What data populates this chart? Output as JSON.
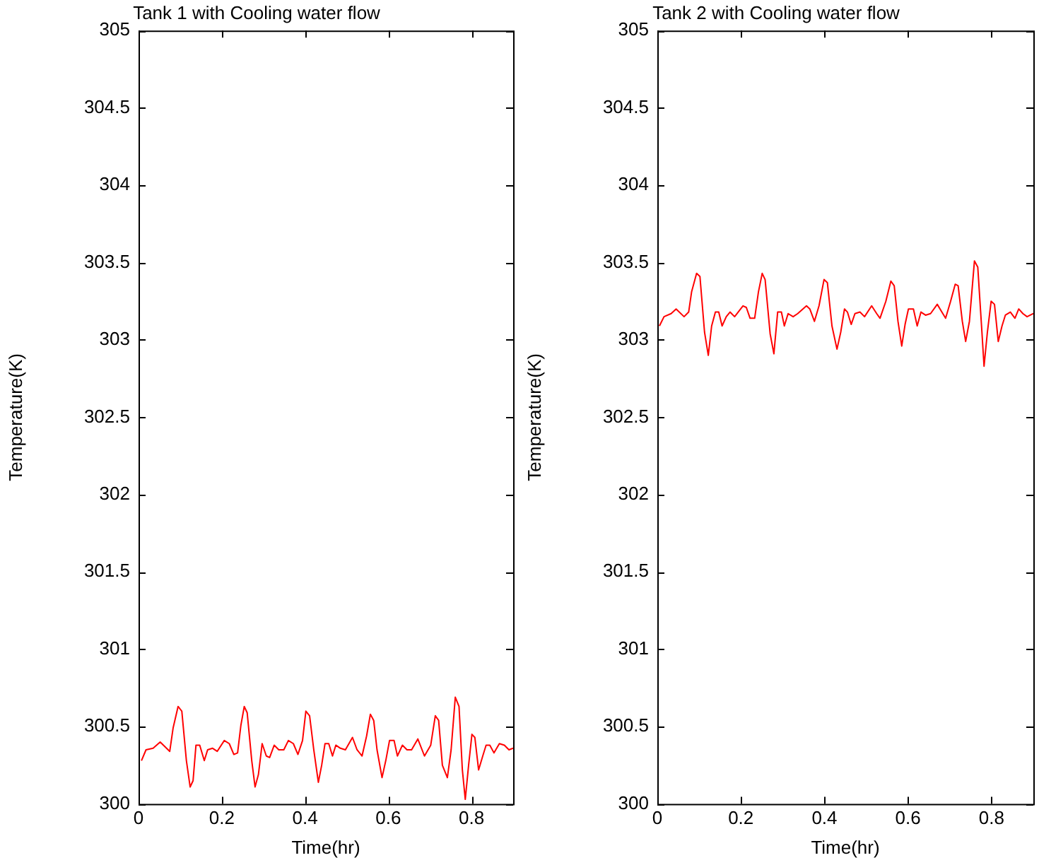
{
  "chart_data": [
    {
      "type": "line",
      "title": "Tank 1 with Cooling water flow",
      "xlabel": "Time(hr)",
      "ylabel": "Temperature(K)",
      "xlim": [
        0,
        0.9
      ],
      "xticks": [
        0,
        0.2,
        0.4,
        0.6,
        0.8
      ],
      "ylim": [
        300,
        305
      ],
      "yticks": [
        300,
        300.5,
        301,
        301.5,
        302,
        302.5,
        303,
        303.5,
        304,
        304.5,
        305
      ],
      "grid": false,
      "legend": false,
      "marker": "none",
      "line_style": "solid",
      "x": [
        0.007,
        0.018,
        0.035,
        0.052,
        0.075,
        0.083,
        0.095,
        0.104,
        0.115,
        0.124,
        0.131,
        0.138,
        0.147,
        0.158,
        0.166,
        0.178,
        0.189,
        0.206,
        0.218,
        0.229,
        0.238,
        0.246,
        0.254,
        0.261,
        0.272,
        0.28,
        0.288,
        0.297,
        0.307,
        0.315,
        0.326,
        0.337,
        0.349,
        0.36,
        0.372,
        0.383,
        0.394,
        0.402,
        0.411,
        0.421,
        0.432,
        0.44,
        0.448,
        0.457,
        0.466,
        0.474,
        0.485,
        0.497,
        0.514,
        0.525,
        0.537,
        0.548,
        0.557,
        0.565,
        0.573,
        0.585,
        0.594,
        0.603,
        0.614,
        0.622,
        0.634,
        0.645,
        0.656,
        0.671,
        0.687,
        0.702,
        0.713,
        0.721,
        0.73,
        0.742,
        0.751,
        0.761,
        0.77,
        0.778,
        0.785,
        0.793,
        0.801,
        0.808,
        0.817,
        0.827,
        0.835,
        0.844,
        0.854,
        0.867,
        0.879,
        0.89,
        0.9
      ],
      "series": [
        {
          "color": "#ff0000",
          "values": [
            300.28,
            300.35,
            300.36,
            300.4,
            300.34,
            300.49,
            300.63,
            300.6,
            300.28,
            300.11,
            300.15,
            300.38,
            300.38,
            300.28,
            300.35,
            300.36,
            300.34,
            300.41,
            300.39,
            300.32,
            300.33,
            300.51,
            300.63,
            300.59,
            300.28,
            300.11,
            300.19,
            300.39,
            300.31,
            300.3,
            300.38,
            300.35,
            300.35,
            300.41,
            300.39,
            300.32,
            300.41,
            300.6,
            300.57,
            300.35,
            300.14,
            300.25,
            300.39,
            300.39,
            300.31,
            300.38,
            300.36,
            300.35,
            300.43,
            300.35,
            300.31,
            300.44,
            300.58,
            300.54,
            300.35,
            300.17,
            300.28,
            300.41,
            300.41,
            300.31,
            300.38,
            300.35,
            300.35,
            300.42,
            300.31,
            300.38,
            300.57,
            300.54,
            300.25,
            300.17,
            300.35,
            300.69,
            300.63,
            300.22,
            300.03,
            300.25,
            300.45,
            300.43,
            300.22,
            300.31,
            300.38,
            300.38,
            300.33,
            300.39,
            300.38,
            300.35,
            300.36
          ]
        }
      ]
    },
    {
      "type": "line",
      "title": "Tank 2 with Cooling water flow",
      "xlabel": "Time(hr)",
      "ylabel": "Temperature(K)",
      "xlim": [
        0,
        0.9
      ],
      "xticks": [
        0,
        0.2,
        0.4,
        0.6,
        0.8
      ],
      "ylim": [
        300,
        305
      ],
      "yticks": [
        300,
        300.5,
        301,
        301.5,
        302,
        302.5,
        303,
        303.5,
        304,
        304.5,
        305
      ],
      "grid": false,
      "legend": false,
      "marker": "none",
      "line_style": "solid",
      "x": [
        0.005,
        0.016,
        0.033,
        0.045,
        0.064,
        0.075,
        0.082,
        0.094,
        0.102,
        0.113,
        0.122,
        0.13,
        0.139,
        0.147,
        0.155,
        0.165,
        0.174,
        0.185,
        0.205,
        0.213,
        0.222,
        0.233,
        0.242,
        0.251,
        0.258,
        0.27,
        0.279,
        0.288,
        0.297,
        0.304,
        0.313,
        0.325,
        0.336,
        0.357,
        0.365,
        0.376,
        0.387,
        0.399,
        0.407,
        0.418,
        0.43,
        0.439,
        0.448,
        0.455,
        0.464,
        0.473,
        0.485,
        0.496,
        0.513,
        0.525,
        0.533,
        0.547,
        0.559,
        0.567,
        0.576,
        0.585,
        0.593,
        0.601,
        0.613,
        0.622,
        0.631,
        0.642,
        0.654,
        0.67,
        0.681,
        0.69,
        0.702,
        0.713,
        0.72,
        0.73,
        0.738,
        0.747,
        0.759,
        0.767,
        0.776,
        0.782,
        0.79,
        0.799,
        0.807,
        0.816,
        0.825,
        0.833,
        0.845,
        0.856,
        0.865,
        0.875,
        0.885,
        0.9
      ],
      "series": [
        {
          "color": "#ff0000",
          "values": [
            303.09,
            303.15,
            303.17,
            303.2,
            303.15,
            303.18,
            303.31,
            303.43,
            303.41,
            303.05,
            302.9,
            303.09,
            303.18,
            303.18,
            303.09,
            303.15,
            303.18,
            303.15,
            303.22,
            303.21,
            303.14,
            303.14,
            303.31,
            303.43,
            303.39,
            303.04,
            302.91,
            303.18,
            303.18,
            303.09,
            303.17,
            303.15,
            303.17,
            303.22,
            303.2,
            303.12,
            303.22,
            303.39,
            303.37,
            303.09,
            302.94,
            303.05,
            303.2,
            303.18,
            303.1,
            303.17,
            303.18,
            303.15,
            303.22,
            303.17,
            303.14,
            303.25,
            303.38,
            303.35,
            303.12,
            302.96,
            303.1,
            303.2,
            303.2,
            303.09,
            303.18,
            303.16,
            303.17,
            303.23,
            303.18,
            303.14,
            303.25,
            303.36,
            303.35,
            303.12,
            302.99,
            303.12,
            303.51,
            303.47,
            303.09,
            302.83,
            303.05,
            303.25,
            303.23,
            302.99,
            303.09,
            303.16,
            303.18,
            303.14,
            303.2,
            303.17,
            303.15,
            303.17
          ]
        }
      ]
    }
  ]
}
